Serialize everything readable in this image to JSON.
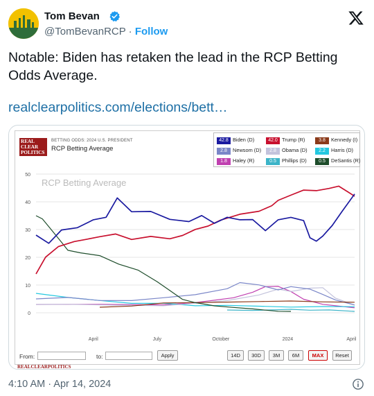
{
  "author": {
    "name": "Tom Bevan",
    "handle": "@TomBevanRCP",
    "separator": "·",
    "follow_label": "Follow"
  },
  "tweet": {
    "text": "Notable: Biden has retaken the lead in the RCP Betting Odds Average.",
    "link": "realclearpolitics.com/elections/bett…",
    "timestamp": "4:10 AM · Apr 14, 2024"
  },
  "card": {
    "logo_lines": [
      "REAL",
      "CLEAR",
      "POLITICS"
    ],
    "subtitle": "BETTING ODDS: 2024 U.S. PRESIDENT",
    "title": "RCP Betting Average",
    "footer": "REALCLEARPOLITICS",
    "controls": {
      "from_label": "From:",
      "to_label": "to:",
      "apply": "Apply",
      "ranges": [
        "14D",
        "30D",
        "3M",
        "6M",
        "MAX",
        "Reset"
      ],
      "active_range": "MAX"
    }
  },
  "icons": {
    "verified": "verified-badge-icon",
    "x": "x-logo-icon",
    "info": "info-icon"
  },
  "chart_data": {
    "type": "line",
    "title": "RCP Betting Average",
    "ylim": [
      0,
      50
    ],
    "yticks": [
      0,
      10,
      20,
      30,
      40,
      50
    ],
    "xticks": [
      "April",
      "July",
      "October",
      "2024",
      "April"
    ],
    "legend": [
      {
        "name": "Biden (D)",
        "value": "42.8",
        "color": "#1a1aa0"
      },
      {
        "name": "Trump (R)",
        "value": "42.0",
        "color": "#c8102e"
      },
      {
        "name": "Kennedy (I)",
        "value": "3.8",
        "color": "#8b3a1a"
      },
      {
        "name": "Newsom (D)",
        "value": "2.8",
        "color": "#7a86c8"
      },
      {
        "name": "Obama (D)",
        "value": "2.8",
        "color": "#c3c3dc"
      },
      {
        "name": "Harris (D)",
        "value": "2.2",
        "color": "#24c8e0"
      },
      {
        "name": "Haley (R)",
        "value": "1.8",
        "color": "#c040b0"
      },
      {
        "name": "Phillips (D)",
        "value": "0.5",
        "color": "#3cb4c8"
      },
      {
        "name": "DeSantis (R)",
        "value": "0.5",
        "color": "#1e4d2b"
      }
    ],
    "series": [
      {
        "name": "Biden (D)",
        "color": "#1a1aa0",
        "x": [
          0,
          0.04,
          0.08,
          0.13,
          0.18,
          0.22,
          0.255,
          0.3,
          0.36,
          0.42,
          0.48,
          0.52,
          0.56,
          0.6,
          0.64,
          0.68,
          0.72,
          0.76,
          0.8,
          0.84,
          0.86,
          0.88,
          0.9,
          0.93,
          0.96,
          1.0
        ],
        "values": [
          28,
          25,
          30,
          31,
          34,
          35,
          42,
          37,
          37,
          34,
          33,
          35,
          32,
          34,
          33,
          33,
          29,
          33,
          34,
          33,
          27,
          26,
          28,
          32,
          37,
          42.8
        ]
      },
      {
        "name": "Trump (R)",
        "color": "#c8102e",
        "x": [
          0,
          0.03,
          0.07,
          0.12,
          0.16,
          0.2,
          0.25,
          0.3,
          0.36,
          0.42,
          0.46,
          0.5,
          0.54,
          0.58,
          0.64,
          0.7,
          0.74,
          0.76,
          0.8,
          0.84,
          0.88,
          0.92,
          0.95,
          0.98,
          1.0
        ],
        "values": [
          14,
          20,
          24,
          26,
          27,
          28,
          29,
          27,
          28,
          27,
          28,
          30,
          31,
          33,
          35,
          36,
          38,
          40,
          42,
          44,
          44,
          45,
          46,
          44,
          42.0
        ]
      },
      {
        "name": "DeSantis (R)",
        "color": "#1e4d2b",
        "x": [
          0,
          0.02,
          0.04,
          0.06,
          0.08,
          0.1,
          0.14,
          0.2,
          0.26,
          0.32,
          0.38,
          0.42,
          0.46,
          0.5,
          0.56,
          0.62,
          0.68,
          0.72,
          0.76,
          0.8
        ],
        "values": [
          35,
          34,
          31,
          28,
          25,
          22,
          21,
          20,
          17,
          15,
          11,
          8,
          5,
          4,
          3,
          2.5,
          2,
          1.5,
          1,
          0.5
        ]
      },
      {
        "name": "Kennedy (I)",
        "color": "#8b3a1a",
        "x": [
          0.2,
          0.3,
          0.4,
          0.5,
          0.6,
          0.7,
          0.8,
          0.9,
          1.0
        ],
        "values": [
          2,
          3,
          4,
          4,
          4,
          4,
          4,
          3.5,
          3.8
        ]
      },
      {
        "name": "Newsom (D)",
        "color": "#7a86c8",
        "x": [
          0,
          0.1,
          0.2,
          0.3,
          0.4,
          0.5,
          0.6,
          0.64,
          0.7,
          0.76,
          0.8,
          0.86,
          0.9,
          0.94,
          1.0
        ],
        "values": [
          5,
          6,
          5,
          5,
          6,
          7,
          9,
          11,
          10,
          8,
          9,
          8,
          6,
          4,
          2.8
        ]
      },
      {
        "name": "Obama (D)",
        "color": "#c3c3dc",
        "x": [
          0,
          0.1,
          0.2,
          0.3,
          0.4,
          0.5,
          0.6,
          0.7,
          0.76,
          0.8,
          0.86,
          0.9,
          0.94,
          1.0
        ],
        "values": [
          3,
          3,
          3,
          3,
          3,
          4,
          5,
          7,
          9,
          8,
          9,
          9,
          5,
          2.8
        ]
      },
      {
        "name": "Harris (D)",
        "color": "#24c8e0",
        "x": [
          0,
          0.1,
          0.2,
          0.3,
          0.4,
          0.5,
          0.6,
          0.7,
          0.8,
          0.9,
          1.0
        ],
        "values": [
          7,
          6,
          5,
          4,
          4,
          3,
          3,
          2.5,
          2,
          2,
          2.2
        ]
      },
      {
        "name": "Haley (R)",
        "color": "#c040b0",
        "x": [
          0,
          0.2,
          0.4,
          0.5,
          0.56,
          0.62,
          0.68,
          0.72,
          0.76,
          0.8,
          0.84,
          0.9,
          1.0
        ],
        "values": [
          3,
          3,
          3,
          4,
          5,
          6,
          8,
          10,
          10,
          8,
          5,
          3,
          1.8
        ]
      },
      {
        "name": "Phillips (D)",
        "color": "#3cb4c8",
        "x": [
          0.6,
          0.68,
          0.74,
          0.8,
          0.86,
          0.92,
          1.0
        ],
        "values": [
          1,
          1,
          1,
          1,
          0.5,
          0.5,
          0.5
        ]
      }
    ]
  }
}
